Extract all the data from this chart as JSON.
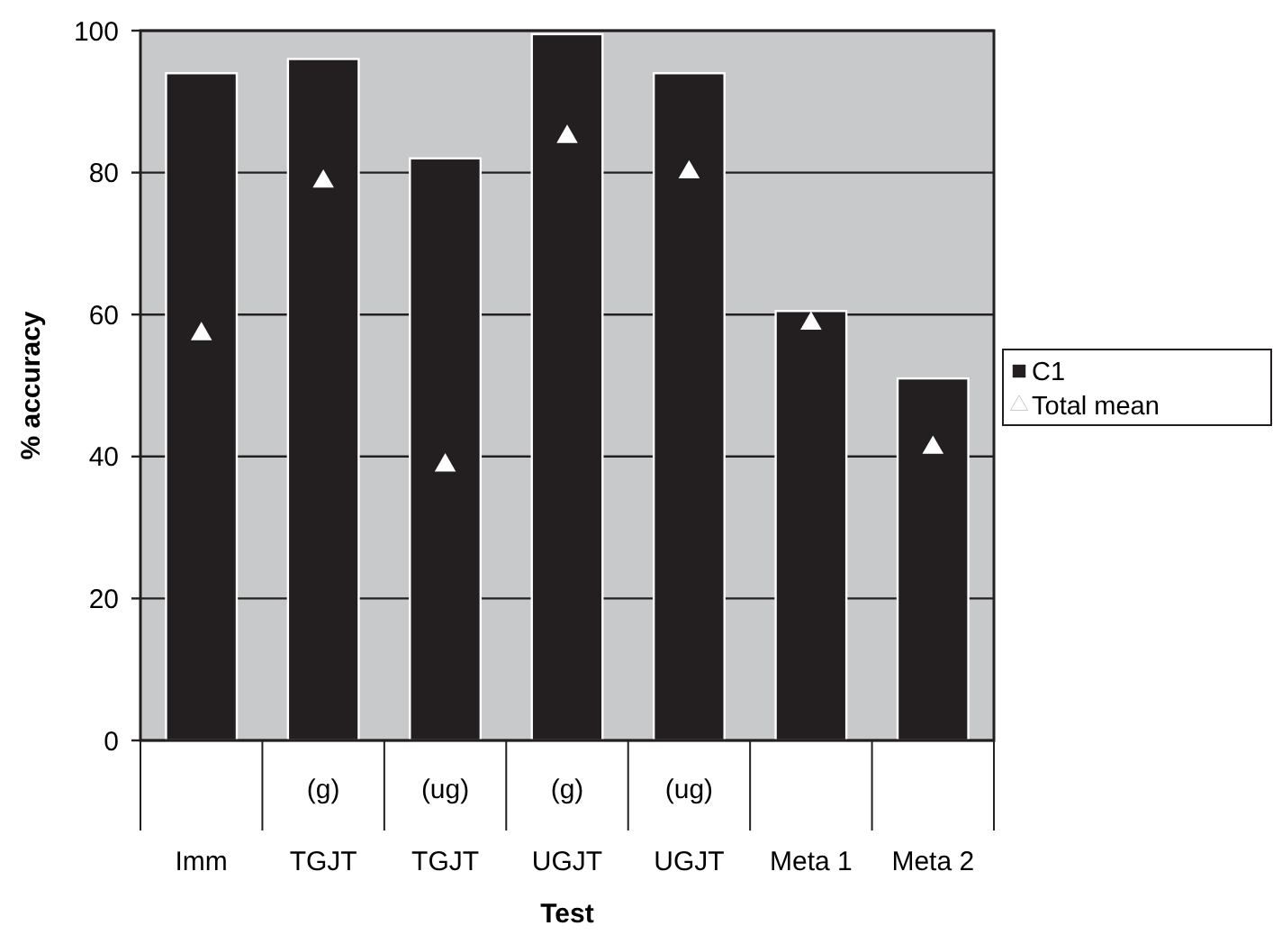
{
  "chart_data": {
    "type": "bar",
    "xlabel": "Test",
    "ylabel": "% accuracy",
    "categories": [
      "Imm",
      "(g)\nTGJT",
      "(ug)\nTGJT",
      "(g)\nUGJT",
      "(ug)\nUGJT",
      "Meta 1",
      "Meta 2"
    ],
    "series": [
      {
        "name": "C1",
        "color": "#231f20",
        "values": [
          94,
          96,
          82,
          99.5,
          94,
          60.5,
          51
        ]
      },
      {
        "name": "Total mean",
        "type": "scatter",
        "color": "#ffffff",
        "marker": "triangle",
        "values": [
          57.5,
          79,
          39,
          85.3,
          80.3,
          59,
          41.5
        ]
      }
    ],
    "ylim": [
      0,
      100
    ],
    "yticks": [
      0,
      20,
      40,
      60,
      80,
      100
    ],
    "grid": "y",
    "legend": "right"
  }
}
